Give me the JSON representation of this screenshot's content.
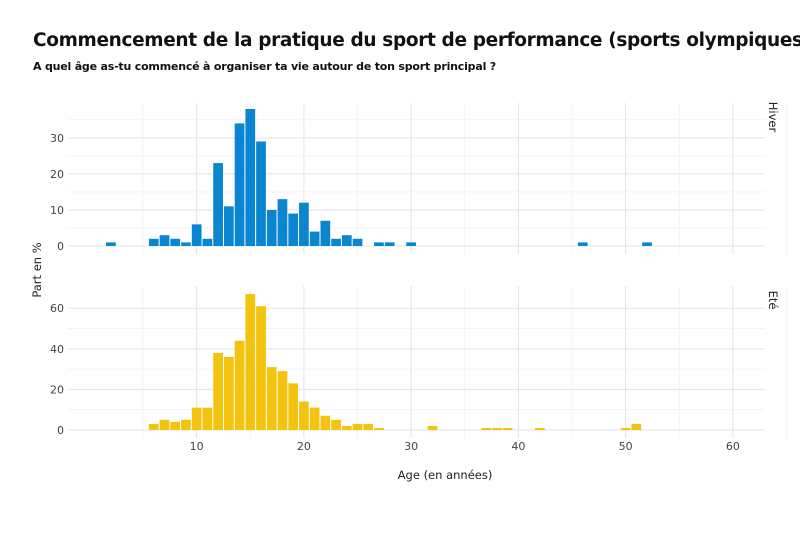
{
  "title": "Commencement de la pratique du sport de performance (sports olympiques)",
  "subtitle": "A quel âge as-tu commencé à organiser ta vie autour de ton sport principal ?",
  "chart_data": {
    "type": "bar",
    "title": "Commencement de la pratique du sport de performance (sports olympiques)",
    "subtitle": "A quel âge as-tu commencé à organiser ta vie autour de ton sport principal ?",
    "xlabel": "Age (en années)",
    "ylabel": "Part en %",
    "x_ticks": [
      10,
      20,
      30,
      40,
      50,
      60
    ],
    "xlim": [
      -2,
      63
    ],
    "grid": true,
    "bin_width": 1,
    "panels": [
      {
        "name": "Hiver",
        "color": "#0a85cf",
        "ylim": [
          0,
          38
        ],
        "y_ticks": [
          0,
          10,
          20,
          30
        ],
        "x": [
          2,
          6,
          7,
          8,
          9,
          10,
          11,
          12,
          13,
          14,
          15,
          16,
          17,
          18,
          19,
          20,
          21,
          22,
          23,
          24,
          25,
          27,
          28,
          30,
          46,
          52
        ],
        "values": [
          1,
          2,
          3,
          2,
          1,
          6,
          2,
          23,
          11,
          34,
          38,
          29,
          10,
          13,
          9,
          12,
          4,
          7,
          2,
          3,
          2,
          1,
          1,
          1,
          1,
          1
        ]
      },
      {
        "name": "Eté",
        "color": "#f2c30f",
        "ylim": [
          0,
          68
        ],
        "y_ticks": [
          0,
          20,
          40,
          60
        ],
        "x": [
          6,
          7,
          8,
          9,
          10,
          11,
          12,
          13,
          14,
          15,
          16,
          17,
          18,
          19,
          20,
          21,
          22,
          23,
          24,
          25,
          26,
          27,
          32,
          37,
          38,
          39,
          42,
          50,
          51
        ],
        "values": [
          3,
          5,
          4,
          5,
          11,
          11,
          38,
          36,
          44,
          67,
          61,
          31,
          29,
          23,
          14,
          11,
          7,
          5,
          2,
          3,
          3,
          1,
          2,
          1,
          1,
          1,
          1,
          1,
          3
        ]
      }
    ]
  }
}
